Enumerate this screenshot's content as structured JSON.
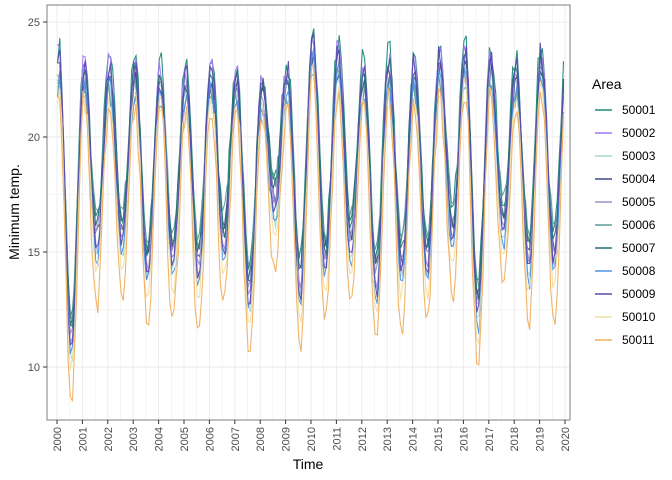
{
  "chart_data": {
    "type": "line",
    "xlabel": "Time",
    "ylabel": "Minimum temp.",
    "xlim": [
      1999.6,
      2020.2
    ],
    "ylim": [
      7.8,
      25.7
    ],
    "x_ticks": [
      "2000",
      "2001",
      "2002",
      "2003",
      "2004",
      "2005",
      "2006",
      "2007",
      "2008",
      "2009",
      "2010",
      "2011",
      "2012",
      "2013",
      "2014",
      "2015",
      "2016",
      "2017",
      "2018",
      "2019",
      "2020"
    ],
    "y_ticks": [
      10,
      15,
      20,
      25
    ],
    "grid": true,
    "legend": {
      "title": "Area",
      "position": "right"
    },
    "frequency": "monthly",
    "years": [
      2000,
      2001,
      2002,
      2003,
      2004,
      2005,
      2006,
      2007,
      2008,
      2009,
      2010,
      2011,
      2012,
      2013,
      2014,
      2015,
      2016,
      2017,
      2018,
      2019
    ],
    "reference_annual_max": [
      24.0,
      23.5,
      23.5,
      23.4,
      23.3,
      23.1,
      23.5,
      23.2,
      22.7,
      23.3,
      24.8,
      24.1,
      23.5,
      23.8,
      23.6,
      23.9,
      24.1,
      23.8,
      23.4,
      24.1
    ],
    "reference_annual_min": [
      8.5,
      12.8,
      13.0,
      11.7,
      12.0,
      11.6,
      12.8,
      10.5,
      14.5,
      11.0,
      12.0,
      12.7,
      11.2,
      11.7,
      12.0,
      13.2,
      10.0,
      13.5,
      12.0,
      12.2
    ],
    "series": [
      {
        "name": "50001",
        "color": "#1b8a7a",
        "max_offset": 0.0,
        "min_offset": 3.5
      },
      {
        "name": "50002",
        "color": "#a07cf0",
        "max_offset": -0.3,
        "min_offset": 2.5
      },
      {
        "name": "50003",
        "color": "#a8d8d4",
        "max_offset": -1.2,
        "min_offset": 2.0
      },
      {
        "name": "50004",
        "color": "#3b4a86",
        "max_offset": -1.0,
        "min_offset": 3.0
      },
      {
        "name": "50005",
        "color": "#9a90c8",
        "max_offset": -0.8,
        "min_offset": 2.8
      },
      {
        "name": "50006",
        "color": "#5f9a9c",
        "max_offset": -1.5,
        "min_offset": 3.8
      },
      {
        "name": "50007",
        "color": "#2a6f78",
        "max_offset": -0.6,
        "min_offset": 3.2
      },
      {
        "name": "50008",
        "color": "#4f93e6",
        "max_offset": -1.3,
        "min_offset": 1.8
      },
      {
        "name": "50009",
        "color": "#5a4bb0",
        "max_offset": -0.4,
        "min_offset": 2.2
      },
      {
        "name": "50010",
        "color": "#f2e0a0",
        "max_offset": -1.8,
        "min_offset": 1.2
      },
      {
        "name": "50011",
        "color": "#f0b060",
        "max_offset": -2.0,
        "min_offset": 0.0
      }
    ]
  }
}
